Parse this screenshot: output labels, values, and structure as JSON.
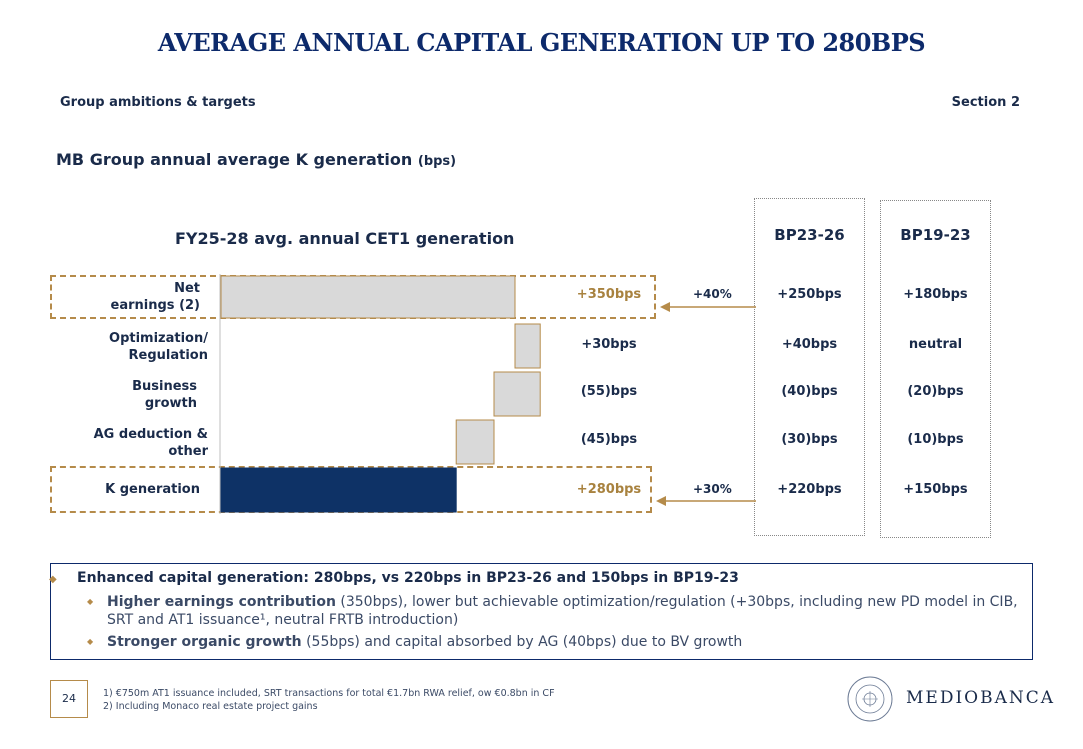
{
  "title": "AVERAGE ANNUAL CAPITAL GENERATION UP TO 280BPS",
  "header": {
    "left": "Group ambitions & targets",
    "right": "Section 2"
  },
  "chart_title": {
    "main": "MB Group annual average K generation",
    "unit": "(bps)"
  },
  "chart_data": {
    "type": "waterfall",
    "title": "FY25-28 avg. annual CET1 generation",
    "unit": "bps",
    "steps": [
      {
        "label": "Net earnings (2)",
        "label_lines": [
          "Net",
          "earnings (2)"
        ],
        "value": 350,
        "kind": "total",
        "display": "+350bps"
      },
      {
        "label": "Optimization/ Regulation",
        "label_lines": [
          "Optimization/",
          "Regulation"
        ],
        "value": 30,
        "kind": "delta",
        "display": "+30bps"
      },
      {
        "label": "Business growth",
        "label_lines": [
          "Business",
          "growth"
        ],
        "value": -55,
        "kind": "delta",
        "display": "(55)bps"
      },
      {
        "label": "AG deduction & other",
        "label_lines": [
          "AG deduction &",
          "other"
        ],
        "value": -45,
        "kind": "delta",
        "display": "(45)bps"
      },
      {
        "label": "K generation",
        "label_lines": [
          "K generation"
        ],
        "value": 280,
        "kind": "total",
        "display": "+280bps"
      }
    ],
    "comparisons": [
      {
        "name": "BP23-26",
        "values": [
          "+250bps",
          "+40bps",
          "(40)bps",
          "(30)bps",
          "+220bps"
        ]
      },
      {
        "name": "BP19-23",
        "values": [
          "+180bps",
          "neutral",
          "(20)bps",
          "(10)bps",
          "+150bps"
        ]
      }
    ],
    "growth_arrows": [
      {
        "row": "Net earnings (2)",
        "label": "+40%"
      },
      {
        "row": "K generation",
        "label": "+30%"
      }
    ],
    "colors": {
      "bar_grey": "#d9d9d9",
      "bar_total": "#0e3266",
      "bar_border": "#b58b4a",
      "highlight": "#b58b4a"
    }
  },
  "bullets": {
    "main": "Enhanced capital generation: 280bps, vs 220bps in BP23-26 and 150bps in BP19-23",
    "sub1_bold": "Higher earnings contribution",
    "sub1_rest": " (350bps), lower but achievable optimization/regulation (+30bps,  including new PD model in CIB, SRT and AT1 issuance¹, neutral FRTB introduction)",
    "sub2_bold": "Stronger organic growth",
    "sub2_rest": " (55bps) and capital absorbed by AG (40bps) due to BV growth"
  },
  "footer": {
    "page": "24",
    "notes": [
      "1)    €750m AT1 issuance included, SRT transactions for total €1.7bn RWA relief, ow €0.8bn in CF",
      "2)    Including Monaco real estate project gains"
    ],
    "logo": "MEDIOBANCA",
    "seal_text": "MEDIOBANCA · BANCA DI CREDITO FINANZIARIO"
  }
}
